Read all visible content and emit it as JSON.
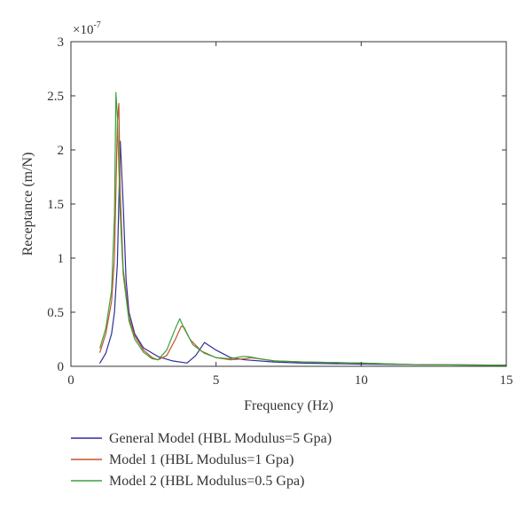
{
  "chart_data": {
    "type": "line",
    "title": "",
    "xlabel": "Frequency (Hz)",
    "ylabel": "Receptance (m/N)",
    "xlim": [
      0,
      15
    ],
    "ylim": [
      0,
      3
    ],
    "y_multiplier_label": "×10",
    "y_multiplier_exponent": "-7",
    "x_ticks": [
      0,
      5,
      10,
      15
    ],
    "x_tick_labels": [
      "0",
      "5",
      "10",
      "15"
    ],
    "y_ticks": [
      0,
      0.5,
      1,
      1.5,
      2,
      2.5,
      3
    ],
    "y_tick_labels": [
      "0",
      "0.5",
      "1",
      "1.5",
      "2",
      "2.5",
      "3"
    ],
    "grid": false,
    "legend_position": "bottom",
    "series": [
      {
        "name": "General Model (HBL Modulus=5 Gpa)",
        "color": "#2d2d9c",
        "x": [
          1.0,
          1.2,
          1.4,
          1.5,
          1.6,
          1.7,
          1.8,
          1.9,
          2.0,
          2.2,
          2.5,
          3.0,
          3.5,
          4.0,
          4.3,
          4.6,
          5.0,
          5.5,
          6.0,
          7.0,
          8.0,
          10.0,
          12.0,
          15.0
        ],
        "y": [
          0.03,
          0.12,
          0.3,
          0.5,
          0.95,
          2.08,
          1.5,
          0.8,
          0.5,
          0.3,
          0.17,
          0.09,
          0.05,
          0.03,
          0.1,
          0.22,
          0.15,
          0.08,
          0.06,
          0.04,
          0.03,
          0.02,
          0.015,
          0.01
        ]
      },
      {
        "name": "Model 1 (HBL Modulus=1 Gpa)",
        "color": "#c8502a",
        "x": [
          1.0,
          1.2,
          1.4,
          1.5,
          1.6,
          1.65,
          1.7,
          1.8,
          2.0,
          2.2,
          2.5,
          2.8,
          3.0,
          3.3,
          3.6,
          3.8,
          3.9,
          4.1,
          4.5,
          5.0,
          5.5,
          6.0,
          6.2,
          7.0,
          8.0,
          10.0,
          12.0,
          15.0
        ],
        "y": [
          0.13,
          0.3,
          0.6,
          1.0,
          2.25,
          2.43,
          1.6,
          0.9,
          0.45,
          0.28,
          0.15,
          0.08,
          0.06,
          0.1,
          0.25,
          0.37,
          0.36,
          0.25,
          0.14,
          0.08,
          0.06,
          0.07,
          0.08,
          0.05,
          0.04,
          0.03,
          0.015,
          0.01
        ]
      },
      {
        "name": "Model 2 (HBL Modulus=0.5 Gpa)",
        "color": "#3aa23a",
        "x": [
          1.0,
          1.2,
          1.4,
          1.5,
          1.55,
          1.6,
          1.7,
          1.8,
          2.0,
          2.2,
          2.5,
          2.8,
          3.0,
          3.3,
          3.6,
          3.75,
          3.9,
          4.2,
          4.6,
          5.0,
          5.5,
          5.9,
          6.1,
          6.5,
          7.0,
          8.0,
          10.0,
          12.0,
          15.0
        ],
        "y": [
          0.17,
          0.35,
          0.7,
          1.4,
          2.53,
          2.3,
          1.4,
          0.85,
          0.42,
          0.25,
          0.13,
          0.07,
          0.06,
          0.15,
          0.35,
          0.44,
          0.35,
          0.2,
          0.12,
          0.08,
          0.07,
          0.09,
          0.09,
          0.07,
          0.05,
          0.04,
          0.03,
          0.015,
          0.01
        ]
      }
    ]
  }
}
